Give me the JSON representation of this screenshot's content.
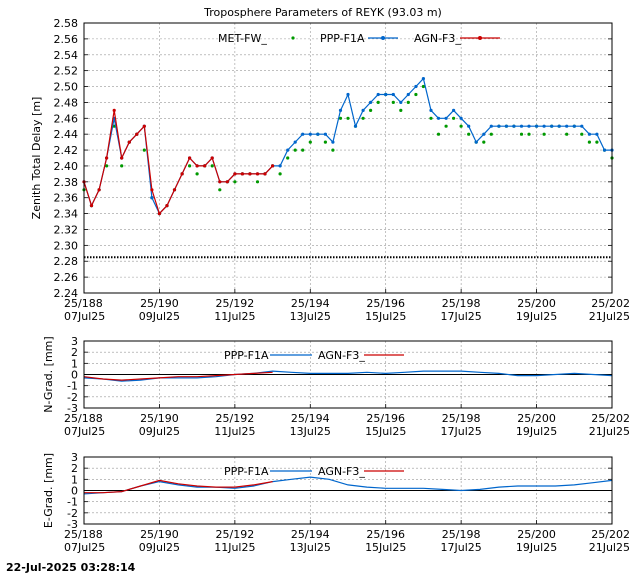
{
  "footer_timestamp": "22-Jul-2025 03:28:14",
  "colors": {
    "met": "#009900",
    "ppp": "#0066cc",
    "agn": "#cc0000",
    "baseline": "#000000",
    "grid": "#999999"
  },
  "chart_data": [
    {
      "type": "line",
      "title": "Troposphere Parameters of REYK (93.03 m)",
      "ylabel": "Zenith Total Delay [m]",
      "xlabel": "",
      "ylim": [
        2.24,
        2.58
      ],
      "yticks": [
        "2.58",
        "2.56",
        "2.54",
        "2.52",
        "2.50",
        "2.48",
        "2.46",
        "2.44",
        "2.42",
        "2.40",
        "2.38",
        "2.36",
        "2.34",
        "2.32",
        "2.30",
        "2.28",
        "2.26",
        "2.24"
      ],
      "xlim": [
        188,
        202
      ],
      "xticks": [
        {
          "v": 188,
          "doy": "25/188",
          "date": "07Jul25"
        },
        {
          "v": 190,
          "doy": "25/190",
          "date": "09Jul25"
        },
        {
          "v": 192,
          "doy": "25/192",
          "date": "11Jul25"
        },
        {
          "v": 194,
          "doy": "25/194",
          "date": "13Jul25"
        },
        {
          "v": 196,
          "doy": "25/196",
          "date": "15Jul25"
        },
        {
          "v": 198,
          "doy": "25/198",
          "date": "17Jul25"
        },
        {
          "v": 200,
          "doy": "25/200",
          "date": "19Jul25"
        },
        {
          "v": 202,
          "doy": "25/202",
          "date": "21Jul25"
        }
      ],
      "grid": true,
      "legend_position": "top-right",
      "series": [
        {
          "name": "MET-FW_",
          "key": "met",
          "style": "points",
          "x": [
            188.0,
            188.2,
            188.4,
            188.6,
            188.8,
            189.0,
            189.2,
            189.4,
            189.6,
            189.8,
            190.0,
            190.2,
            190.4,
            190.6,
            190.8,
            191.0,
            191.2,
            191.4,
            191.6,
            191.8,
            192.0,
            192.2,
            192.4,
            192.6,
            192.8,
            193.0,
            193.2,
            193.4,
            193.6,
            193.8,
            194.0,
            194.2,
            194.4,
            194.6,
            194.8,
            195.0,
            195.2,
            195.4,
            195.6,
            195.8,
            196.0,
            196.2,
            196.4,
            196.6,
            196.8,
            197.0,
            197.2,
            197.4,
            197.6,
            197.8,
            198.0,
            198.2,
            198.4,
            198.6,
            198.8,
            199.0,
            199.2,
            199.4,
            199.6,
            199.8,
            200.0,
            200.2,
            200.4,
            200.6,
            200.8,
            201.0,
            201.2,
            201.4,
            201.6,
            201.8,
            202.0
          ],
          "y": [
            2.37,
            2.35,
            2.37,
            2.4,
            2.45,
            2.4,
            2.43,
            2.44,
            2.42,
            2.36,
            2.34,
            2.35,
            2.37,
            2.39,
            2.4,
            2.39,
            2.4,
            2.4,
            2.37,
            2.38,
            2.38,
            2.39,
            2.39,
            2.38,
            2.39,
            2.4,
            2.39,
            2.41,
            2.42,
            2.42,
            2.43,
            2.44,
            2.43,
            2.42,
            2.46,
            2.46,
            2.45,
            2.46,
            2.47,
            2.48,
            2.49,
            2.48,
            2.47,
            2.48,
            2.49,
            2.5,
            2.46,
            2.44,
            2.45,
            2.46,
            2.45,
            2.44,
            2.43,
            2.43,
            2.44,
            2.45,
            2.45,
            2.45,
            2.44,
            2.44,
            2.45,
            2.44,
            2.45,
            2.45,
            2.44,
            2.45,
            2.44,
            2.43,
            2.43,
            2.42,
            2.41
          ]
        },
        {
          "name": "PPP-F1A",
          "key": "ppp",
          "style": "line-points",
          "x": [
            188.0,
            188.2,
            188.4,
            188.6,
            188.8,
            189.0,
            189.2,
            189.4,
            189.6,
            189.8,
            190.0,
            190.2,
            190.4,
            190.6,
            190.8,
            191.0,
            191.2,
            191.4,
            191.6,
            191.8,
            192.0,
            192.2,
            192.4,
            192.6,
            192.8,
            193.0,
            193.2,
            193.4,
            193.6,
            193.8,
            194.0,
            194.2,
            194.4,
            194.6,
            194.8,
            195.0,
            195.2,
            195.4,
            195.6,
            195.8,
            196.0,
            196.2,
            196.4,
            196.6,
            196.8,
            197.0,
            197.2,
            197.4,
            197.6,
            197.8,
            198.0,
            198.2,
            198.4,
            198.6,
            198.8,
            199.0,
            199.2,
            199.4,
            199.6,
            199.8,
            200.0,
            200.2,
            200.4,
            200.6,
            200.8,
            201.0,
            201.2,
            201.4,
            201.6,
            201.8,
            202.0
          ],
          "y": [
            2.38,
            2.35,
            2.37,
            2.41,
            2.46,
            2.41,
            2.43,
            2.44,
            2.45,
            2.36,
            2.34,
            2.35,
            2.37,
            2.39,
            2.41,
            2.4,
            2.4,
            2.41,
            2.38,
            2.38,
            2.39,
            2.39,
            2.39,
            2.39,
            2.39,
            2.4,
            2.4,
            2.42,
            2.43,
            2.44,
            2.44,
            2.44,
            2.44,
            2.43,
            2.47,
            2.49,
            2.45,
            2.47,
            2.48,
            2.49,
            2.49,
            2.49,
            2.48,
            2.49,
            2.5,
            2.51,
            2.47,
            2.46,
            2.46,
            2.47,
            2.46,
            2.45,
            2.43,
            2.44,
            2.45,
            2.45,
            2.45,
            2.45,
            2.45,
            2.45,
            2.45,
            2.45,
            2.45,
            2.45,
            2.45,
            2.45,
            2.45,
            2.44,
            2.44,
            2.42,
            2.42
          ]
        },
        {
          "name": "AGN-F3_",
          "key": "agn",
          "style": "line-points",
          "x": [
            188.0,
            188.2,
            188.4,
            188.6,
            188.8,
            189.0,
            189.2,
            189.4,
            189.6,
            189.8,
            190.0,
            190.2,
            190.4,
            190.6,
            190.8,
            191.0,
            191.2,
            191.4,
            191.6,
            191.8,
            192.0,
            192.2,
            192.4,
            192.6,
            192.8,
            193.0
          ],
          "y": [
            2.38,
            2.35,
            2.37,
            2.41,
            2.47,
            2.41,
            2.43,
            2.44,
            2.45,
            2.37,
            2.34,
            2.35,
            2.37,
            2.39,
            2.41,
            2.4,
            2.4,
            2.41,
            2.38,
            2.38,
            2.39,
            2.39,
            2.39,
            2.39,
            2.39,
            2.4
          ]
        },
        {
          "name": "",
          "key": "baseline",
          "style": "dotted-line",
          "x": [
            188,
            202
          ],
          "y": [
            2.285,
            2.285
          ]
        }
      ]
    },
    {
      "type": "line",
      "ylabel": "N-Grad. [mm]",
      "ylim": [
        -3,
        3
      ],
      "yticks": [
        "3",
        "2",
        "1",
        "0",
        "-1",
        "-2",
        "-3"
      ],
      "xlim": [
        188,
        202
      ],
      "xticks": [
        {
          "v": 188,
          "doy": "25/188",
          "date": "07Jul25"
        },
        {
          "v": 190,
          "doy": "25/190",
          "date": "09Jul25"
        },
        {
          "v": 192,
          "doy": "25/192",
          "date": "11Jul25"
        },
        {
          "v": 194,
          "doy": "25/194",
          "date": "13Jul25"
        },
        {
          "v": 196,
          "doy": "25/196",
          "date": "15Jul25"
        },
        {
          "v": 198,
          "doy": "25/198",
          "date": "17Jul25"
        },
        {
          "v": 200,
          "doy": "25/200",
          "date": "19Jul25"
        },
        {
          "v": 202,
          "doy": "25/202",
          "date": "21Jul25"
        }
      ],
      "grid": true,
      "legend_position": "top-center",
      "series": [
        {
          "name": "PPP-F1A",
          "key": "ppp",
          "style": "line",
          "x": [
            188,
            188.5,
            189,
            189.5,
            190,
            190.5,
            191,
            191.5,
            192,
            192.5,
            193,
            193.5,
            194,
            194.5,
            195,
            195.5,
            196,
            196.5,
            197,
            197.5,
            198,
            198.5,
            199,
            199.5,
            200,
            200.5,
            201,
            201.5,
            202
          ],
          "y": [
            -0.3,
            -0.4,
            -0.6,
            -0.5,
            -0.3,
            -0.3,
            -0.3,
            -0.2,
            0.0,
            0.1,
            0.3,
            0.2,
            0.1,
            0.1,
            0.1,
            0.2,
            0.1,
            0.2,
            0.3,
            0.3,
            0.3,
            0.2,
            0.1,
            -0.1,
            -0.1,
            0.0,
            0.1,
            0.0,
            -0.1
          ]
        },
        {
          "name": "AGN-F3_",
          "key": "agn",
          "style": "line",
          "x": [
            188,
            188.5,
            189,
            189.5,
            190,
            190.5,
            191,
            191.5,
            192,
            192.5,
            193
          ],
          "y": [
            -0.2,
            -0.4,
            -0.5,
            -0.4,
            -0.3,
            -0.2,
            -0.2,
            -0.1,
            0.0,
            0.1,
            0.2
          ]
        }
      ]
    },
    {
      "type": "line",
      "ylabel": "E-Grad. [mm]",
      "ylim": [
        -3,
        3
      ],
      "yticks": [
        "3",
        "2",
        "1",
        "0",
        "-1",
        "-2",
        "-3"
      ],
      "xlim": [
        188,
        202
      ],
      "xticks": [
        {
          "v": 188,
          "doy": "25/188",
          "date": "07Jul25"
        },
        {
          "v": 190,
          "doy": "25/190",
          "date": "09Jul25"
        },
        {
          "v": 192,
          "doy": "25/192",
          "date": "11Jul25"
        },
        {
          "v": 194,
          "doy": "25/194",
          "date": "13Jul25"
        },
        {
          "v": 196,
          "doy": "25/196",
          "date": "15Jul25"
        },
        {
          "v": 198,
          "doy": "25/198",
          "date": "17Jul25"
        },
        {
          "v": 200,
          "doy": "25/200",
          "date": "19Jul25"
        },
        {
          "v": 202,
          "doy": "25/202",
          "date": "21Jul25"
        }
      ],
      "grid": true,
      "legend_position": "top-center",
      "series": [
        {
          "name": "PPP-F1A",
          "key": "ppp",
          "style": "line",
          "x": [
            188,
            188.5,
            189,
            189.5,
            190,
            190.5,
            191,
            191.5,
            192,
            192.5,
            193,
            193.5,
            194,
            194.5,
            195,
            195.5,
            196,
            196.5,
            197,
            197.5,
            198,
            198.5,
            199,
            199.5,
            200,
            200.5,
            201,
            201.5,
            202
          ],
          "y": [
            -0.3,
            -0.2,
            -0.1,
            0.4,
            0.8,
            0.5,
            0.3,
            0.3,
            0.2,
            0.4,
            0.8,
            1.0,
            1.2,
            1.0,
            0.5,
            0.3,
            0.2,
            0.2,
            0.2,
            0.1,
            0.0,
            0.1,
            0.3,
            0.4,
            0.4,
            0.4,
            0.5,
            0.7,
            0.9
          ]
        },
        {
          "name": "AGN-F3_",
          "key": "agn",
          "style": "line",
          "x": [
            188,
            188.5,
            189,
            189.5,
            190,
            190.5,
            191,
            191.5,
            192,
            192.5,
            193
          ],
          "y": [
            -0.2,
            -0.2,
            -0.1,
            0.4,
            0.9,
            0.6,
            0.4,
            0.3,
            0.3,
            0.5,
            0.8
          ]
        }
      ]
    }
  ]
}
